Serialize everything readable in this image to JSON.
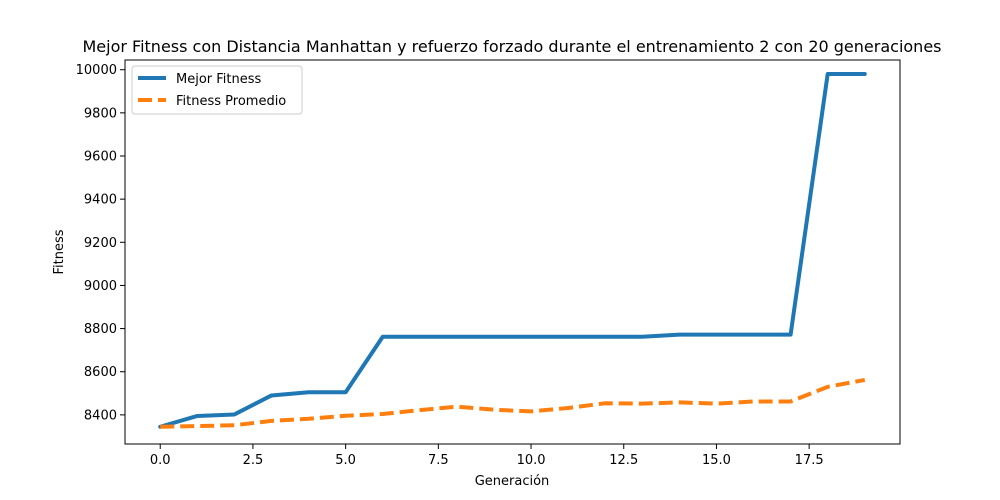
{
  "chart_data": {
    "type": "line",
    "title": "Mejor Fitness con Distancia Manhattan y refuerzo forzado durante el entrenamiento 2 con 20 generaciones",
    "xlabel": "Generación",
    "ylabel": "Fitness",
    "xlim": [
      -0.95,
      19.95
    ],
    "ylim": [
      8265,
      10045
    ],
    "xticks": [
      0.0,
      2.5,
      5.0,
      7.5,
      10.0,
      12.5,
      15.0,
      17.5
    ],
    "xtick_labels": [
      "0.0",
      "2.5",
      "5.0",
      "7.5",
      "10.0",
      "12.5",
      "15.0",
      "17.5"
    ],
    "yticks": [
      8400,
      8600,
      8800,
      9000,
      9200,
      9400,
      9600,
      9800,
      10000
    ],
    "ytick_labels": [
      "8400",
      "8600",
      "8800",
      "9000",
      "9200",
      "9400",
      "9600",
      "9800",
      "10000"
    ],
    "grid": false,
    "legend_position": "top-left",
    "x": [
      0,
      1,
      2,
      3,
      4,
      5,
      6,
      7,
      8,
      9,
      10,
      11,
      12,
      13,
      14,
      15,
      16,
      17,
      18,
      19
    ],
    "series": [
      {
        "name": "Mejor Fitness",
        "color": "#1f77b4",
        "style": "solid",
        "values": [
          8345,
          8395,
          8402,
          8490,
          8505,
          8505,
          8762,
          8762,
          8762,
          8762,
          8762,
          8762,
          8762,
          8762,
          8772,
          8772,
          8772,
          8772,
          9980,
          9980
        ]
      },
      {
        "name": "Fitness Promedio",
        "color": "#ff7f0e",
        "style": "dashed",
        "values": [
          8345,
          8348,
          8352,
          8372,
          8382,
          8396,
          8404,
          8422,
          8438,
          8424,
          8416,
          8432,
          8454,
          8452,
          8458,
          8452,
          8462,
          8462,
          8530,
          8562
        ]
      }
    ]
  }
}
